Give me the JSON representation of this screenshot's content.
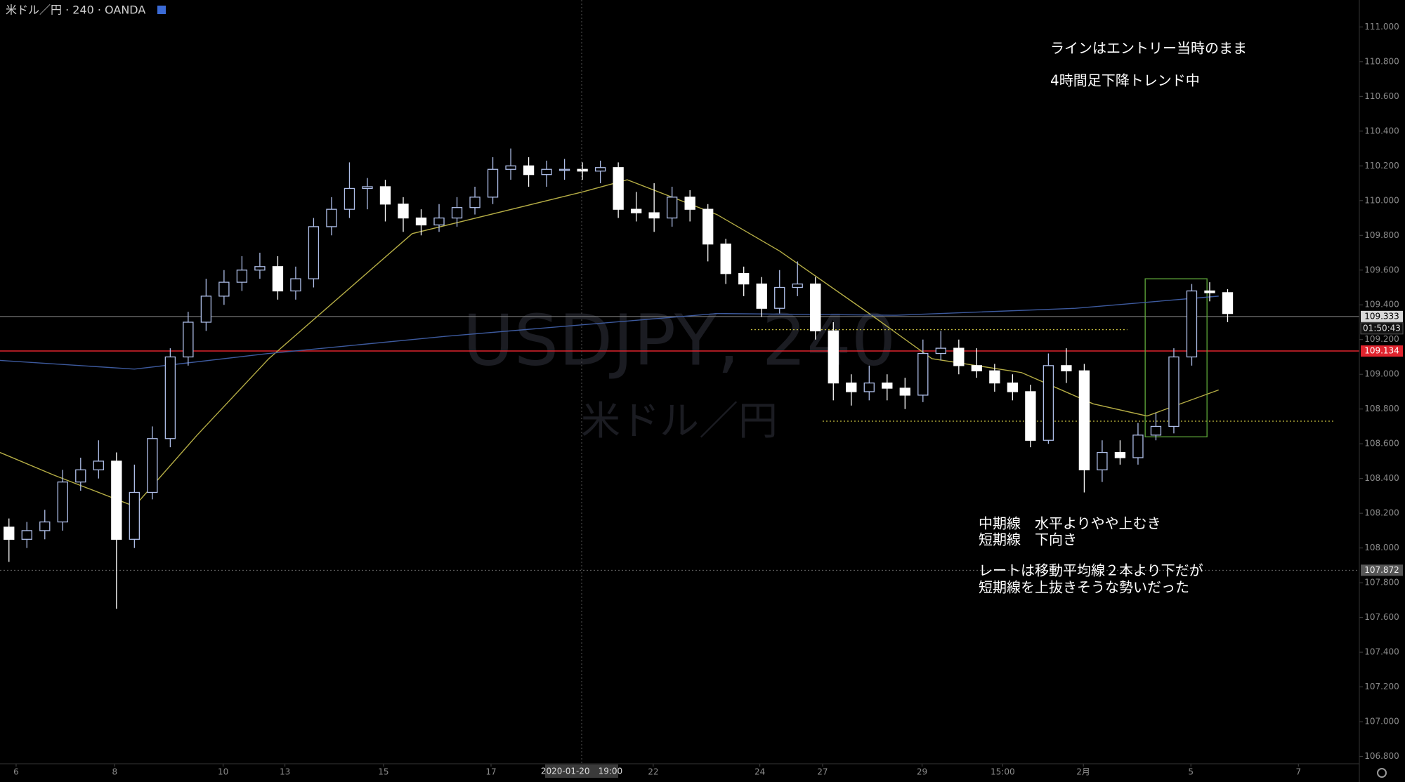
{
  "chart_data": {
    "type": "candlestick",
    "title": "米ドル／円 · 240 · OANDA",
    "watermark": "USDJPY, 240",
    "watermark_subtitle": "米ドル／円",
    "open": [
      108.12,
      108.05,
      108.1,
      108.15,
      108.38,
      108.45,
      108.5,
      108.05,
      108.32,
      108.63,
      109.1,
      109.3,
      109.45,
      109.53,
      109.6,
      109.62,
      109.48,
      109.55,
      109.85,
      109.95,
      110.07,
      110.08,
      109.98,
      109.9,
      109.86,
      109.9,
      109.96,
      110.02,
      110.18,
      110.2,
      110.15,
      110.18,
      110.18,
      110.17,
      110.19,
      109.95,
      109.93,
      109.9,
      110.02,
      109.95,
      109.75,
      109.58,
      109.52,
      109.38,
      109.5,
      109.52,
      109.25,
      108.95,
      108.9,
      108.95,
      108.92,
      108.88,
      109.12,
      109.15,
      109.05,
      109.02,
      108.95,
      108.9,
      108.62,
      109.05,
      109.02,
      108.45,
      108.55,
      108.52,
      108.65,
      108.7,
      109.1,
      109.48,
      109.47
    ],
    "high": [
      108.17,
      108.15,
      108.22,
      108.45,
      108.52,
      108.62,
      108.55,
      108.48,
      108.7,
      109.15,
      109.36,
      109.55,
      109.6,
      109.68,
      109.7,
      109.68,
      109.62,
      109.9,
      110.02,
      110.22,
      110.13,
      110.12,
      110.02,
      109.95,
      109.98,
      110.02,
      110.08,
      110.25,
      110.3,
      110.25,
      110.23,
      110.24,
      110.22,
      110.23,
      110.22,
      110.05,
      110.1,
      110.08,
      110.06,
      109.98,
      109.78,
      109.62,
      109.56,
      109.6,
      109.65,
      109.56,
      109.3,
      109.0,
      109.05,
      109.0,
      108.98,
      109.2,
      109.25,
      109.2,
      109.15,
      109.06,
      109.0,
      108.94,
      109.12,
      109.15,
      109.06,
      108.62,
      108.62,
      108.72,
      108.78,
      109.15,
      109.52,
      109.53,
      109.49
    ],
    "low": [
      107.92,
      108.0,
      108.05,
      108.1,
      108.33,
      108.4,
      107.65,
      108.0,
      108.28,
      108.58,
      109.05,
      109.25,
      109.4,
      109.48,
      109.55,
      109.43,
      109.43,
      109.5,
      109.8,
      109.9,
      109.95,
      109.88,
      109.82,
      109.8,
      109.82,
      109.85,
      109.92,
      109.98,
      110.12,
      110.08,
      110.08,
      110.12,
      110.12,
      110.1,
      109.9,
      109.88,
      109.82,
      109.85,
      109.88,
      109.65,
      109.52,
      109.45,
      109.33,
      109.35,
      109.45,
      109.2,
      108.85,
      108.82,
      108.85,
      108.85,
      108.8,
      108.84,
      109.08,
      109.0,
      108.98,
      108.9,
      108.85,
      108.58,
      108.6,
      108.95,
      108.32,
      108.38,
      108.48,
      108.48,
      108.62,
      108.66,
      109.05,
      109.42,
      109.3
    ],
    "close": [
      108.05,
      108.1,
      108.15,
      108.38,
      108.45,
      108.5,
      108.05,
      108.32,
      108.63,
      109.1,
      109.3,
      109.45,
      109.53,
      109.6,
      109.62,
      109.48,
      109.55,
      109.85,
      109.95,
      110.07,
      110.08,
      109.98,
      109.9,
      109.86,
      109.9,
      109.96,
      110.02,
      110.18,
      110.2,
      110.15,
      110.18,
      110.18,
      110.17,
      110.19,
      109.95,
      109.93,
      109.9,
      110.02,
      109.95,
      109.75,
      109.58,
      109.52,
      109.38,
      109.5,
      109.52,
      109.25,
      108.95,
      108.9,
      108.95,
      108.92,
      108.88,
      109.12,
      109.15,
      109.05,
      109.02,
      108.95,
      108.9,
      108.62,
      109.05,
      109.02,
      108.45,
      108.55,
      108.52,
      108.65,
      108.7,
      109.1,
      109.48,
      109.47,
      109.35
    ],
    "up_color": "#aebee8",
    "down_color": "#ffffff",
    "moving_averages": [
      {
        "color": "#b5ad45",
        "x": [
          -0.5,
          2.5,
          7,
          10.5,
          14.5,
          22.5,
          32,
          34.5,
          39.5,
          43,
          48,
          51.5,
          56.5,
          60.5,
          63.5,
          67.5
        ],
        "values": [
          108.55,
          108.42,
          108.24,
          108.65,
          109.09,
          109.81,
          110.05,
          110.12,
          109.92,
          109.71,
          109.35,
          109.09,
          109.01,
          108.83,
          108.76,
          108.91
        ]
      },
      {
        "color": "#3d5a9e",
        "x": [
          -0.5,
          7,
          14.5,
          24.5,
          39.5,
          49.5,
          59.5,
          67.5
        ],
        "values": [
          109.08,
          109.03,
          109.12,
          109.22,
          109.35,
          109.34,
          109.38,
          109.45
        ]
      }
    ],
    "price_lines": [
      {
        "value": 109.333,
        "color": "#8a8a8a",
        "countdown": "01:50:43"
      },
      {
        "value": 109.134,
        "color": "#e0242e"
      },
      {
        "value": 107.872,
        "color": "#6a6a6a"
      }
    ],
    "levels": [
      {
        "value": 109.257,
        "x": [
          41.4,
          62.4
        ],
        "color": "#c8c040"
      },
      {
        "value": 108.73,
        "x": [
          45.4,
          73.9
        ],
        "color": "#c8c040"
      }
    ],
    "box": {
      "x": [
        63.4,
        66.85
      ],
      "y": [
        109.55,
        108.64
      ],
      "color": "#5fa83a"
    },
    "annotations": [
      "ラインはエントリー当時のまま",
      "4時間足下降トレンド中",
      "中期線　水平よりやや上むき",
      "短期線　下向き",
      "レートは移動平均線２本より下だが",
      "短期線を上抜きそうな勢いだった"
    ],
    "crosshair_label": "2020-01-20　19:00",
    "xlim": [
      -0.5,
      75.35
    ],
    "xticks": [
      {
        "value": 0.4,
        "label": "6"
      },
      {
        "value": 5.9,
        "label": "8"
      },
      {
        "value": 11.95,
        "label": "10"
      },
      {
        "value": 15.4,
        "label": "13"
      },
      {
        "value": 20.9,
        "label": "15"
      },
      {
        "value": 26.9,
        "label": "17"
      },
      {
        "value": 35.95,
        "label": "22"
      },
      {
        "value": 41.9,
        "label": "24"
      },
      {
        "value": 45.4,
        "label": "27"
      },
      {
        "value": 50.95,
        "label": "29"
      },
      {
        "value": 55.45,
        "label": "15:00"
      },
      {
        "value": 59.95,
        "label": "2月"
      },
      {
        "value": 65.95,
        "label": "5"
      },
      {
        "value": 71.95,
        "label": "7"
      }
    ],
    "ylim": [
      106.774,
      111.155
    ],
    "yticks": [
      {
        "value": 106.8,
        "label": "106.800"
      },
      {
        "value": 107.0,
        "label": "107.000"
      },
      {
        "value": 107.2,
        "label": "107.200"
      },
      {
        "value": 107.4,
        "label": "107.400"
      },
      {
        "value": 107.6,
        "label": "107.600"
      },
      {
        "value": 107.8,
        "label": "107.800"
      },
      {
        "value": 108.0,
        "label": "108.000"
      },
      {
        "value": 108.2,
        "label": "108.200"
      },
      {
        "value": 108.4,
        "label": "108.400"
      },
      {
        "value": 108.6,
        "label": "108.600"
      },
      {
        "value": 108.8,
        "label": "108.800"
      },
      {
        "value": 109.0,
        "label": "109.000"
      },
      {
        "value": 109.2,
        "label": "109.200"
      },
      {
        "value": 109.4,
        "label": "109.400"
      },
      {
        "value": 109.6,
        "label": "109.600"
      },
      {
        "value": 109.8,
        "label": "109.800"
      },
      {
        "value": 110.0,
        "label": "110.000"
      },
      {
        "value": 110.2,
        "label": "110.200"
      },
      {
        "value": 110.4,
        "label": "110.400"
      },
      {
        "value": 110.6,
        "label": "110.600"
      },
      {
        "value": 110.8,
        "label": "110.800"
      },
      {
        "value": 111.0,
        "label": "111.000"
      }
    ]
  }
}
